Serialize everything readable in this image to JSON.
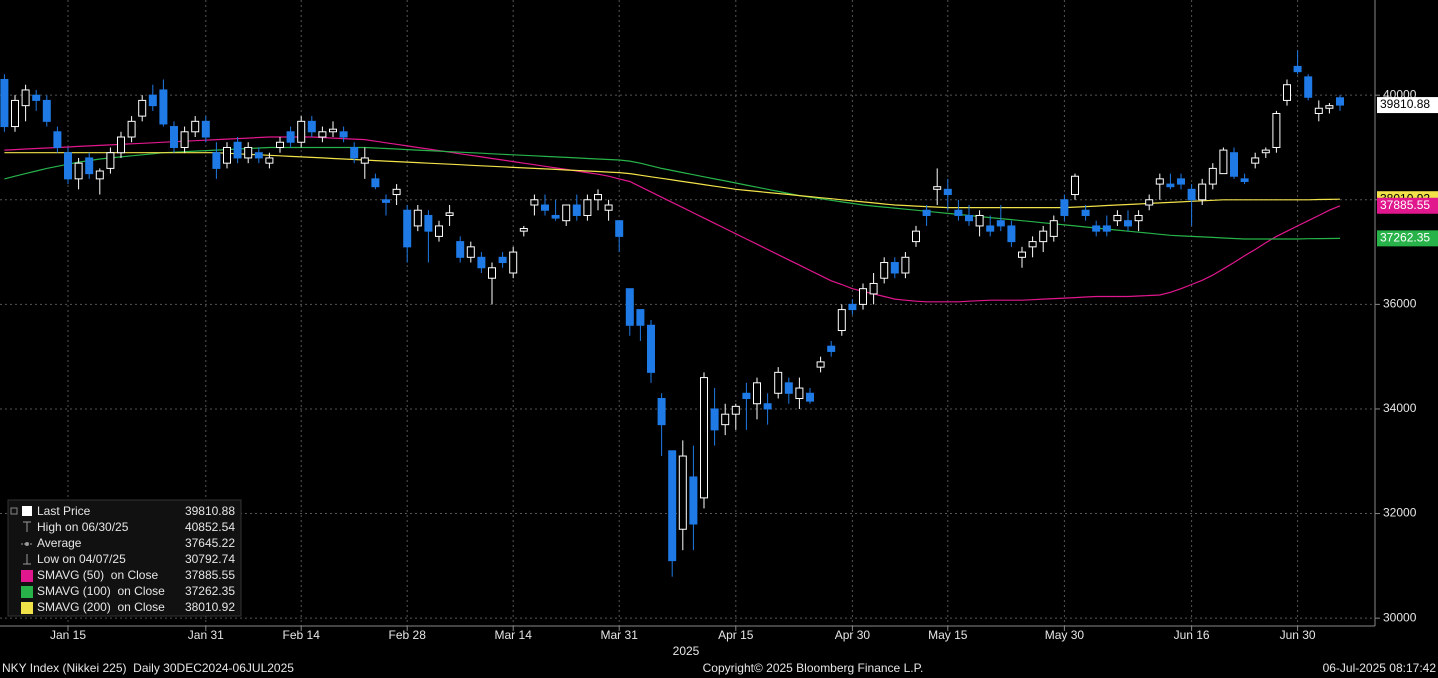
{
  "chart_data": {
    "type": "candlestick",
    "categories": [
      null,
      null,
      null,
      null,
      null,
      null,
      "Jan 15",
      null,
      null,
      null,
      null,
      null,
      null,
      null,
      null,
      null,
      null,
      null,
      null,
      "Jan 31",
      null,
      null,
      null,
      null,
      null,
      null,
      null,
      null,
      "Feb 14",
      null,
      null,
      null,
      null,
      null,
      null,
      null,
      null,
      null,
      "Feb 28",
      null,
      null,
      null,
      null,
      null,
      null,
      null,
      null,
      null,
      "Mar 14",
      null,
      null,
      null,
      null,
      null,
      null,
      null,
      null,
      null,
      "Mar 31",
      null,
      null,
      null,
      null,
      null,
      null,
      null,
      null,
      null,
      null,
      "Apr 15",
      null,
      null,
      null,
      null,
      null,
      null,
      null,
      null,
      null,
      null,
      "Apr 30",
      null,
      null,
      null,
      null,
      null,
      null,
      null,
      null,
      "May 15",
      null,
      null,
      null,
      null,
      null,
      null,
      null,
      null,
      null,
      null,
      "May 30",
      null,
      null,
      null,
      null,
      null,
      null,
      null,
      null,
      null,
      null,
      null,
      "Jun 16",
      null,
      null,
      null,
      null,
      null,
      null,
      null,
      null,
      null,
      "Jun 30",
      null,
      null,
      null,
      null
    ],
    "ohlc": [
      [
        40300,
        40400,
        39300,
        39400
      ],
      [
        39400,
        40000,
        39300,
        39900
      ],
      [
        39800,
        40200,
        39500,
        40100
      ],
      [
        40000,
        40100,
        39700,
        39900
      ],
      [
        39900,
        40000,
        39400,
        39500
      ],
      [
        39300,
        39400,
        38900,
        39000
      ],
      [
        38900,
        39000,
        38300,
        38400
      ],
      [
        38400,
        38800,
        38200,
        38700
      ],
      [
        38800,
        38900,
        38400,
        38500
      ],
      [
        38400,
        38600,
        38100,
        38550
      ],
      [
        38600,
        39000,
        38500,
        38900
      ],
      [
        38900,
        39300,
        38800,
        39200
      ],
      [
        39200,
        39600,
        39100,
        39500
      ],
      [
        39600,
        40000,
        39500,
        39900
      ],
      [
        40000,
        40200,
        39700,
        39800
      ],
      [
        40100,
        40300,
        39400,
        39450
      ],
      [
        39400,
        39500,
        38900,
        39000
      ],
      [
        39000,
        39400,
        38900,
        39300
      ],
      [
        39300,
        39600,
        39200,
        39500
      ],
      [
        39500,
        39600,
        39100,
        39200
      ],
      [
        38900,
        39100,
        38400,
        38600
      ],
      [
        38700,
        39100,
        38600,
        39000
      ],
      [
        39100,
        39200,
        38700,
        38800
      ],
      [
        38800,
        39100,
        38700,
        39000
      ],
      [
        38900,
        39000,
        38700,
        38800
      ],
      [
        38700,
        38900,
        38600,
        38800
      ],
      [
        39000,
        39200,
        38900,
        39100
      ],
      [
        39300,
        39400,
        39000,
        39100
      ],
      [
        39100,
        39600,
        39000,
        39500
      ],
      [
        39500,
        39600,
        39200,
        39300
      ],
      [
        39200,
        39400,
        39100,
        39300
      ],
      [
        39300,
        39500,
        39200,
        39350
      ],
      [
        39300,
        39400,
        39100,
        39200
      ],
      [
        39000,
        39100,
        38700,
        38800
      ],
      [
        38700,
        39000,
        38400,
        38800
      ],
      [
        38400,
        38500,
        38200,
        38250
      ],
      [
        38000,
        38100,
        37700,
        37950
      ],
      [
        38100,
        38300,
        37900,
        38200
      ],
      [
        37800,
        37900,
        36800,
        37100
      ],
      [
        37500,
        37900,
        37400,
        37800
      ],
      [
        37700,
        37800,
        36800,
        37400
      ],
      [
        37300,
        37600,
        37200,
        37500
      ],
      [
        37700,
        37900,
        37500,
        37750
      ],
      [
        37200,
        37300,
        36800,
        36900
      ],
      [
        36900,
        37200,
        36800,
        37100
      ],
      [
        36900,
        37000,
        36600,
        36700
      ],
      [
        36500,
        36800,
        36000,
        36700
      ],
      [
        36900,
        37000,
        36700,
        36800
      ],
      [
        36600,
        37100,
        36500,
        37000
      ],
      [
        37400,
        37500,
        37300,
        37450
      ],
      [
        37900,
        38100,
        37700,
        38000
      ],
      [
        37900,
        38100,
        37700,
        37800
      ],
      [
        37700,
        38000,
        37600,
        37650
      ],
      [
        37600,
        37900,
        37500,
        37900
      ],
      [
        37900,
        38100,
        37600,
        37700
      ],
      [
        37700,
        38100,
        37600,
        38000
      ],
      [
        38000,
        38200,
        37800,
        38100
      ],
      [
        37800,
        38000,
        37600,
        37900
      ],
      [
        37600,
        37600,
        37000,
        37300
      ],
      [
        36300,
        36300,
        35400,
        35600
      ],
      [
        35900,
        35900,
        35300,
        35600
      ],
      [
        35600,
        35700,
        34500,
        34700
      ],
      [
        34200,
        34300,
        33100,
        33700
      ],
      [
        33200,
        33200,
        30792.74,
        31100
      ],
      [
        31700,
        33400,
        31300,
        33100
      ],
      [
        32700,
        33300,
        31300,
        31800
      ],
      [
        32300,
        34700,
        32100,
        34600
      ],
      [
        34000,
        34400,
        33300,
        33600
      ],
      [
        33700,
        34100,
        33500,
        33900
      ],
      [
        33900,
        34100,
        33600,
        34050
      ],
      [
        34300,
        34500,
        33600,
        34200
      ],
      [
        34100,
        34600,
        33800,
        34500
      ],
      [
        34100,
        34300,
        33700,
        34000
      ],
      [
        34300,
        34800,
        34200,
        34700
      ],
      [
        34500,
        34600,
        34100,
        34300
      ],
      [
        34200,
        34600,
        34000,
        34400
      ],
      [
        34300,
        34400,
        34100,
        34150
      ],
      [
        34800,
        35000,
        34700,
        34900
      ],
      [
        35200,
        35300,
        35000,
        35100
      ],
      [
        35500,
        36000,
        35400,
        35900
      ],
      [
        36000,
        36100,
        35800,
        35900
      ],
      [
        36000,
        36400,
        35900,
        36300
      ],
      [
        36200,
        36600,
        36000,
        36400
      ],
      [
        36500,
        36900,
        36400,
        36800
      ],
      [
        36800,
        36900,
        36500,
        36600
      ],
      [
        36600,
        37000,
        36500,
        36900
      ],
      [
        37200,
        37500,
        37100,
        37400
      ],
      [
        37800,
        37900,
        37500,
        37700
      ],
      [
        38200,
        38600,
        37900,
        38250
      ],
      [
        38200,
        38400,
        37800,
        38100
      ],
      [
        37800,
        38000,
        37600,
        37700
      ],
      [
        37700,
        37900,
        37500,
        37600
      ],
      [
        37500,
        37800,
        37300,
        37700
      ],
      [
        37500,
        37700,
        37300,
        37400
      ],
      [
        37600,
        37900,
        37400,
        37500
      ],
      [
        37500,
        37600,
        37100,
        37200
      ],
      [
        36900,
        37100,
        36700,
        37000
      ],
      [
        37100,
        37300,
        36900,
        37200
      ],
      [
        37200,
        37500,
        37000,
        37400
      ],
      [
        37300,
        37700,
        37200,
        37600
      ],
      [
        38000,
        38100,
        37600,
        37700
      ],
      [
        38100,
        38500,
        38000,
        38450
      ],
      [
        37800,
        37900,
        37600,
        37700
      ],
      [
        37500,
        37600,
        37300,
        37400
      ],
      [
        37500,
        37700,
        37300,
        37400
      ],
      [
        37600,
        37800,
        37500,
        37700
      ],
      [
        37600,
        37800,
        37400,
        37500
      ],
      [
        37600,
        37800,
        37400,
        37700
      ],
      [
        37900,
        38100,
        37800,
        38000
      ],
      [
        38300,
        38500,
        38000,
        38400
      ],
      [
        38300,
        38500,
        38200,
        38250
      ],
      [
        38400,
        38500,
        38200,
        38300
      ],
      [
        38200,
        38300,
        37500,
        38000
      ],
      [
        38000,
        38400,
        37900,
        38300
      ],
      [
        38300,
        38700,
        38200,
        38600
      ],
      [
        38500,
        39000,
        38500,
        38950
      ],
      [
        38900,
        39000,
        38400,
        38450
      ],
      [
        38400,
        38500,
        38300,
        38350
      ],
      [
        38700,
        38900,
        38600,
        38800
      ],
      [
        38900,
        39000,
        38800,
        38950
      ],
      [
        39000,
        39700,
        38900,
        39650
      ],
      [
        39900,
        40300,
        39800,
        40200
      ],
      [
        40550,
        40852.54,
        40400,
        40450
      ],
      [
        40350,
        40400,
        39900,
        39960
      ],
      [
        39650,
        39900,
        39500,
        39750
      ],
      [
        39750,
        39850,
        39650,
        39800
      ],
      [
        39950,
        40000,
        39700,
        39810.88
      ]
    ],
    "up_color": "#ffffff",
    "down_color": "#1f7ae6",
    "series": [
      {
        "name": "SMAVG (50)  on Close",
        "color": "#e0178d",
        "values": [
          38950,
          38960,
          38970,
          38980,
          38990,
          39000,
          39010,
          39020,
          39030,
          39040,
          39050,
          39060,
          39070,
          39080,
          39090,
          39100,
          39110,
          39120,
          39130,
          39140,
          39150,
          39160,
          39170,
          39180,
          39190,
          39200,
          39200,
          39200,
          39200,
          39200,
          39190,
          39180,
          39170,
          39160,
          39150,
          39120,
          39090,
          39060,
          39030,
          39000,
          38970,
          38940,
          38910,
          38880,
          38850,
          38820,
          38790,
          38760,
          38730,
          38700,
          38670,
          38640,
          38610,
          38580,
          38550,
          38520,
          38490,
          38450,
          38400,
          38350,
          38250,
          38150,
          38050,
          37950,
          37850,
          37750,
          37650,
          37550,
          37450,
          37350,
          37250,
          37150,
          37050,
          36950,
          36850,
          36750,
          36650,
          36550,
          36450,
          36380,
          36300,
          36250,
          36200,
          36150,
          36100,
          36080,
          36060,
          36050,
          36050,
          36050,
          36050,
          36060,
          36070,
          36080,
          36080,
          36080,
          36080,
          36090,
          36100,
          36110,
          36120,
          36130,
          36140,
          36150,
          36150,
          36150,
          36150,
          36160,
          36170,
          36180,
          36230,
          36300,
          36380,
          36460,
          36560,
          36680,
          36800,
          36930,
          37050,
          37180,
          37300,
          37400,
          37500,
          37600,
          37700,
          37800,
          37885.55
        ]
      },
      {
        "name": "SMAVG (100)  on Close",
        "color": "#27b34a",
        "values": [
          38400,
          38450,
          38500,
          38550,
          38600,
          38640,
          38680,
          38720,
          38750,
          38780,
          38800,
          38820,
          38840,
          38860,
          38880,
          38900,
          38910,
          38920,
          38930,
          38940,
          38950,
          38960,
          38970,
          38980,
          38990,
          39000,
          39000,
          39000,
          39000,
          39000,
          39000,
          39000,
          39000,
          39000,
          39000,
          38990,
          38980,
          38970,
          38960,
          38950,
          38940,
          38930,
          38920,
          38910,
          38900,
          38890,
          38880,
          38870,
          38860,
          38850,
          38840,
          38830,
          38820,
          38810,
          38800,
          38790,
          38780,
          38770,
          38760,
          38740,
          38700,
          38650,
          38600,
          38560,
          38520,
          38480,
          38440,
          38400,
          38360,
          38320,
          38280,
          38240,
          38200,
          38160,
          38120,
          38080,
          38050,
          38020,
          37990,
          37960,
          37930,
          37900,
          37880,
          37860,
          37840,
          37820,
          37800,
          37780,
          37760,
          37740,
          37720,
          37700,
          37680,
          37660,
          37640,
          37620,
          37600,
          37580,
          37560,
          37540,
          37520,
          37500,
          37480,
          37460,
          37440,
          37420,
          37400,
          37380,
          37360,
          37340,
          37320,
          37310,
          37300,
          37290,
          37280,
          37270,
          37260,
          37250,
          37250,
          37250,
          37250,
          37250,
          37250,
          37255,
          37258,
          37260,
          37262.35
        ]
      },
      {
        "name": "SMAVG (200)  on Close",
        "color": "#f2e24a",
        "values": [
          38900,
          38900,
          38900,
          38900,
          38900,
          38900,
          38900,
          38900,
          38900,
          38900,
          38900,
          38900,
          38900,
          38900,
          38900,
          38900,
          38900,
          38900,
          38900,
          38900,
          38900,
          38890,
          38880,
          38870,
          38860,
          38850,
          38840,
          38830,
          38820,
          38810,
          38800,
          38790,
          38780,
          38770,
          38760,
          38750,
          38740,
          38730,
          38720,
          38710,
          38700,
          38690,
          38680,
          38670,
          38660,
          38650,
          38640,
          38630,
          38620,
          38610,
          38600,
          38590,
          38580,
          38570,
          38560,
          38550,
          38540,
          38530,
          38520,
          38500,
          38470,
          38440,
          38410,
          38380,
          38350,
          38320,
          38290,
          38260,
          38230,
          38200,
          38180,
          38160,
          38140,
          38120,
          38100,
          38080,
          38060,
          38040,
          38020,
          38000,
          37980,
          37960,
          37940,
          37920,
          37900,
          37890,
          37880,
          37870,
          37860,
          37850,
          37850,
          37850,
          37850,
          37850,
          37850,
          37850,
          37850,
          37850,
          37850,
          37850,
          37850,
          37860,
          37870,
          37880,
          37890,
          37900,
          37910,
          37920,
          37930,
          37940,
          37950,
          37960,
          37970,
          37980,
          37990,
          38000,
          38000,
          38000,
          38000,
          38000,
          38000,
          38000,
          38000,
          38000,
          38005,
          38008,
          38010.92
        ]
      }
    ],
    "legend": {
      "last_price": "Last Price",
      "high": "High on 06/30/25",
      "average": "Average",
      "average_value": 37645.22,
      "low": "Low on 04/07/25"
    },
    "x_label": "2025",
    "ylim": [
      29850,
      41820
    ],
    "yticks": [
      30000,
      32000,
      34000,
      36000,
      38000,
      40000
    ],
    "grid": true
  },
  "footer": {
    "left": "NKY Index (Nikkei 225)  Daily 30DEC2024-06JUL2025",
    "center": "Copyright© 2025 Bloomberg Finance L.P.",
    "right": "06-Jul-2025 08:17:42"
  }
}
